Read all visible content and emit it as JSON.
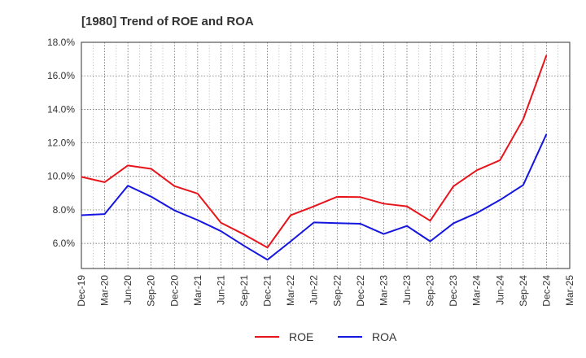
{
  "chart_data": {
    "type": "line",
    "title": "[1980]  Trend of ROE and ROA",
    "xlabel": "",
    "ylabel": "",
    "categories": [
      "Dec-19",
      "Mar-20",
      "Jun-20",
      "Sep-20",
      "Dec-20",
      "Mar-21",
      "Jun-21",
      "Sep-21",
      "Dec-21",
      "Mar-22",
      "Jun-22",
      "Sep-22",
      "Dec-22",
      "Mar-23",
      "Jun-23",
      "Sep-23",
      "Dec-23",
      "Mar-24",
      "Jun-24",
      "Sep-24",
      "Dec-24",
      "Mar-25"
    ],
    "y_ticks": [
      "6.0%",
      "8.0%",
      "10.0%",
      "12.0%",
      "14.0%",
      "16.0%",
      "18.0%"
    ],
    "ylim": [
      4.5,
      18.0
    ],
    "grid": true,
    "legend_position": "bottom-center",
    "series": [
      {
        "name": "ROE",
        "color": "#e8141c",
        "values": [
          9.97,
          9.65,
          10.65,
          10.45,
          9.42,
          8.97,
          7.23,
          6.53,
          5.75,
          7.68,
          8.21,
          8.78,
          8.76,
          8.37,
          8.21,
          7.35,
          9.41,
          10.36,
          10.96,
          13.41,
          17.23,
          null
        ]
      },
      {
        "name": "ROA",
        "color": "#1515e0",
        "values": [
          7.68,
          7.75,
          9.44,
          8.79,
          7.97,
          7.39,
          6.73,
          5.85,
          5.02,
          6.12,
          7.25,
          7.21,
          7.17,
          6.56,
          7.04,
          6.12,
          7.2,
          7.81,
          8.59,
          9.48,
          12.52,
          null
        ]
      }
    ]
  }
}
